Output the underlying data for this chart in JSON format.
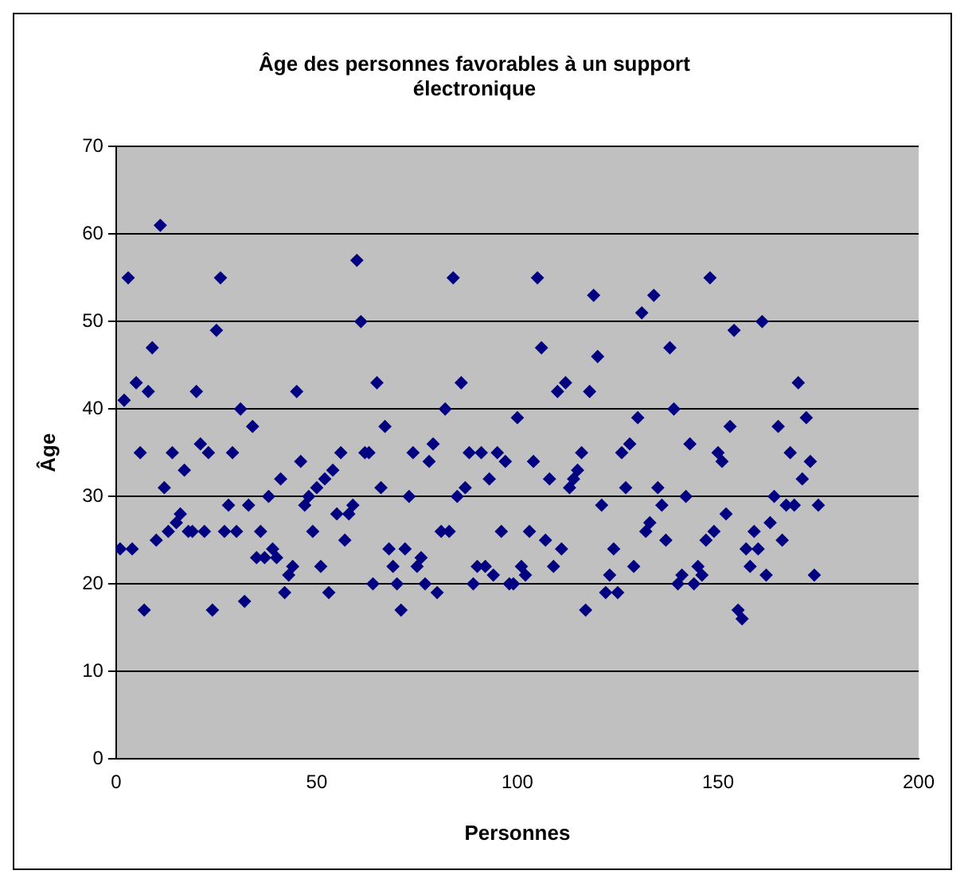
{
  "chart_data": {
    "type": "scatter",
    "title": "Âge des personnes favorables à un support électronique",
    "xlabel": "Personnes",
    "ylabel": "Âge",
    "x": [
      1,
      2,
      3,
      4,
      5,
      6,
      7,
      8,
      9,
      10,
      11,
      12,
      13,
      14,
      15,
      16,
      17,
      18,
      19,
      20,
      21,
      22,
      23,
      24,
      25,
      26,
      27,
      28,
      29,
      30,
      31,
      32,
      33,
      34,
      35,
      36,
      37,
      38,
      39,
      40,
      41,
      42,
      43,
      44,
      45,
      46,
      47,
      48,
      49,
      50,
      51,
      52,
      53,
      54,
      55,
      56,
      57,
      58,
      59,
      60,
      61,
      62,
      63,
      64,
      65,
      66,
      67,
      68,
      69,
      70,
      71,
      72,
      73,
      74,
      75,
      76,
      77,
      78,
      79,
      80,
      81,
      82,
      83,
      84,
      85,
      86,
      87,
      88,
      89,
      90,
      91,
      92,
      93,
      94,
      95,
      96,
      97,
      98,
      99,
      100,
      101,
      102,
      103,
      104,
      105,
      106,
      107,
      108,
      109,
      110,
      111,
      112,
      113,
      114,
      115,
      116,
      117,
      118,
      119,
      120,
      121,
      122,
      123,
      124,
      125,
      126,
      127,
      128,
      129,
      130,
      131,
      132,
      133,
      134,
      135,
      136,
      137,
      138,
      139,
      140,
      141,
      142,
      143,
      144,
      145,
      146,
      147,
      148,
      149,
      150,
      151,
      152,
      153,
      154,
      155,
      156,
      157,
      158,
      159,
      160,
      161,
      162,
      163,
      164,
      165,
      166,
      167,
      168,
      169,
      170,
      171,
      172,
      173,
      174,
      175
    ],
    "values": [
      24,
      41,
      55,
      24,
      43,
      35,
      17,
      42,
      47,
      25,
      61,
      31,
      26,
      35,
      27,
      28,
      33,
      26,
      26,
      42,
      36,
      26,
      35,
      17,
      49,
      55,
      26,
      29,
      35,
      26,
      40,
      18,
      29,
      38,
      23,
      26,
      23,
      30,
      24,
      23,
      32,
      19,
      21,
      22,
      42,
      34,
      29,
      30,
      26,
      31,
      22,
      32,
      19,
      33,
      28,
      35,
      25,
      28,
      29,
      57,
      50,
      35,
      35,
      20,
      43,
      31,
      38,
      24,
      22,
      20,
      17,
      24,
      30,
      35,
      22,
      23,
      20,
      34,
      36,
      19,
      26,
      40,
      26,
      55,
      30,
      43,
      31,
      35,
      20,
      22,
      35,
      22,
      32,
      21,
      35,
      26,
      34,
      20,
      20,
      39,
      22,
      21,
      26,
      34,
      55,
      47,
      25,
      32,
      22,
      42,
      24,
      43,
      31,
      32,
      33,
      35,
      17,
      42,
      53,
      46,
      29,
      19,
      21,
      24,
      19,
      35,
      31,
      36,
      22,
      39,
      51,
      26,
      27,
      53,
      31,
      29,
      25,
      47,
      40,
      20,
      21,
      30,
      36,
      20,
      22,
      21,
      25,
      55,
      26,
      35,
      34,
      28,
      38,
      49,
      17,
      16,
      24,
      22,
      26,
      24,
      50,
      21,
      27,
      30,
      38,
      25,
      29,
      35,
      29,
      43,
      32,
      39,
      34,
      21,
      29
    ],
    "color": "#000080",
    "marker": "diamond",
    "xlim": [
      0,
      200
    ],
    "xticks": [
      0,
      50,
      100,
      150,
      200
    ],
    "ylim": [
      0,
      70
    ],
    "yticks": [
      0,
      10,
      20,
      30,
      40,
      50,
      60,
      70
    ],
    "grid": "y",
    "legend": false
  }
}
